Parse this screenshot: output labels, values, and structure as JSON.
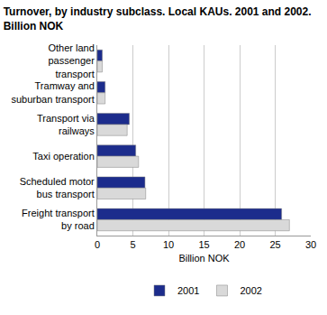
{
  "chart_data": {
    "type": "bar",
    "orientation": "horizontal",
    "title": "Turnover, by industry subclass. Local KAUs. 2001 and 2002. Billion NOK",
    "categories": [
      "Other land passenger transport",
      "Tramway and suburban transport",
      "Transport via railways",
      "Taxi operation",
      "Scheduled motor bus transport",
      "Freight transport by road"
    ],
    "series": [
      {
        "name": "2001",
        "color": "#1c2c8c",
        "values": [
          0.7,
          1.1,
          4.5,
          5.4,
          6.7,
          25.9
        ]
      },
      {
        "name": "2002",
        "color": "#d9d9d9",
        "values": [
          0.7,
          1.1,
          4.2,
          5.8,
          6.8,
          27.0
        ]
      }
    ],
    "x_label": "Billion NOK",
    "xlim": [
      0,
      30
    ],
    "xticks": [
      0,
      5,
      10,
      15,
      20,
      25,
      30
    ],
    "grid": true,
    "legend": "bottom"
  }
}
